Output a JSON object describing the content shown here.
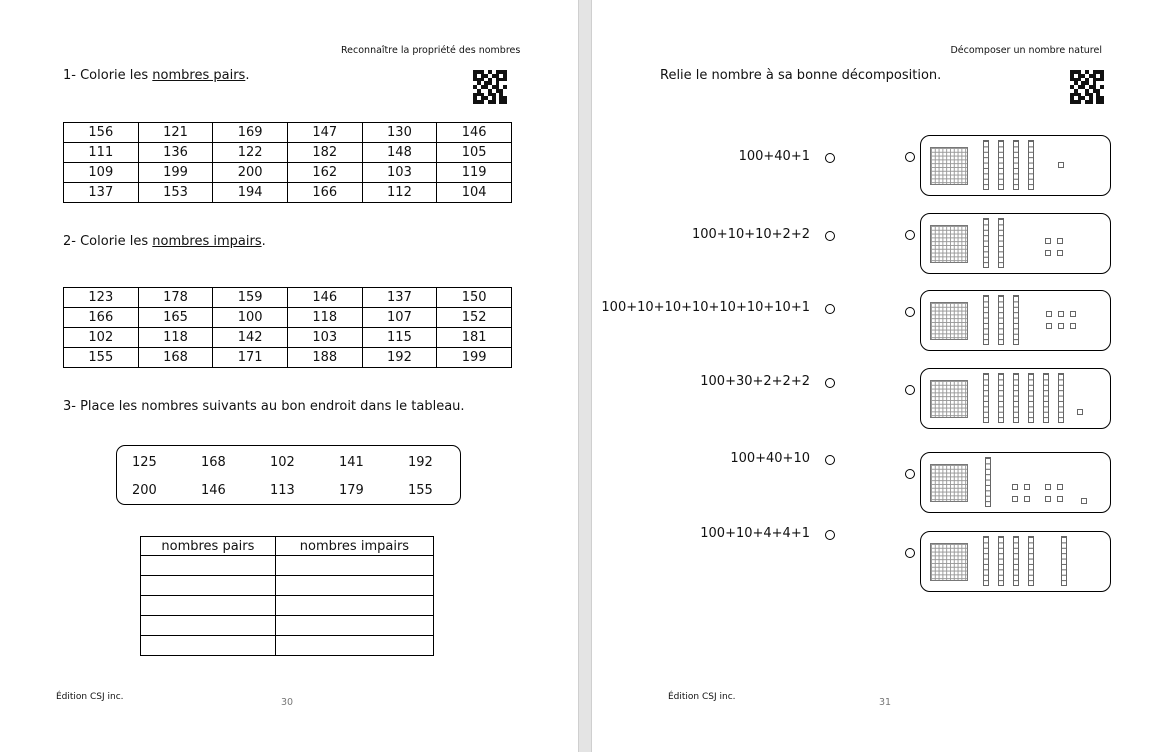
{
  "left_page": {
    "header": "Reconnaître la propriété des nombres",
    "q1": {
      "prefix": "1- Colorie les ",
      "underlined": "nombres pairs",
      "suffix": "."
    },
    "table1": [
      [
        "156",
        "121",
        "169",
        "147",
        "130",
        "146"
      ],
      [
        "111",
        "136",
        "122",
        "182",
        "148",
        "105"
      ],
      [
        "109",
        "199",
        "200",
        "162",
        "103",
        "119"
      ],
      [
        "137",
        "153",
        "194",
        "166",
        "112",
        "104"
      ]
    ],
    "q2": {
      "prefix": "2- Colorie les ",
      "underlined": "nombres impairs",
      "suffix": "."
    },
    "table2": [
      [
        "123",
        "178",
        "159",
        "146",
        "137",
        "150"
      ],
      [
        "166",
        "165",
        "100",
        "118",
        "107",
        "152"
      ],
      [
        "102",
        "118",
        "142",
        "103",
        "115",
        "181"
      ],
      [
        "155",
        "168",
        "171",
        "188",
        "192",
        "199"
      ]
    ],
    "q3": "3- Place les nombres suivants au bon endroit dans le tableau.",
    "numbers": [
      [
        "125",
        "168",
        "102",
        "141",
        "192"
      ],
      [
        "200",
        "146",
        "113",
        "179",
        "155"
      ]
    ],
    "sort_table": {
      "headers": [
        "nombres pairs",
        "nombres impairs"
      ],
      "empty_rows": 5
    },
    "footer": "Édition CSJ inc.",
    "page_number": "30"
  },
  "right_page": {
    "header": "Décomposer un nombre naturel",
    "instruction": "Relie le nombre à sa bonne décomposition.",
    "expressions": [
      "100+40+1",
      "100+10+10+2+2",
      "100+10+10+10+10+10+10+1",
      "100+30+2+2+2",
      "100+40+10",
      "100+10+4+4+1"
    ],
    "cards": [
      {
        "hundreds": 1,
        "tens": 4,
        "units": 1
      },
      {
        "hundreds": 1,
        "tens": 2,
        "units": 4
      },
      {
        "hundreds": 1,
        "tens": 3,
        "units": 6
      },
      {
        "hundreds": 1,
        "tens": 6,
        "units": 1
      },
      {
        "hundreds": 1,
        "tens": 1,
        "units": 9
      },
      {
        "hundreds": 1,
        "tens": 5,
        "units": 0
      }
    ],
    "footer": "Édition CSJ inc.",
    "page_number": "31"
  }
}
